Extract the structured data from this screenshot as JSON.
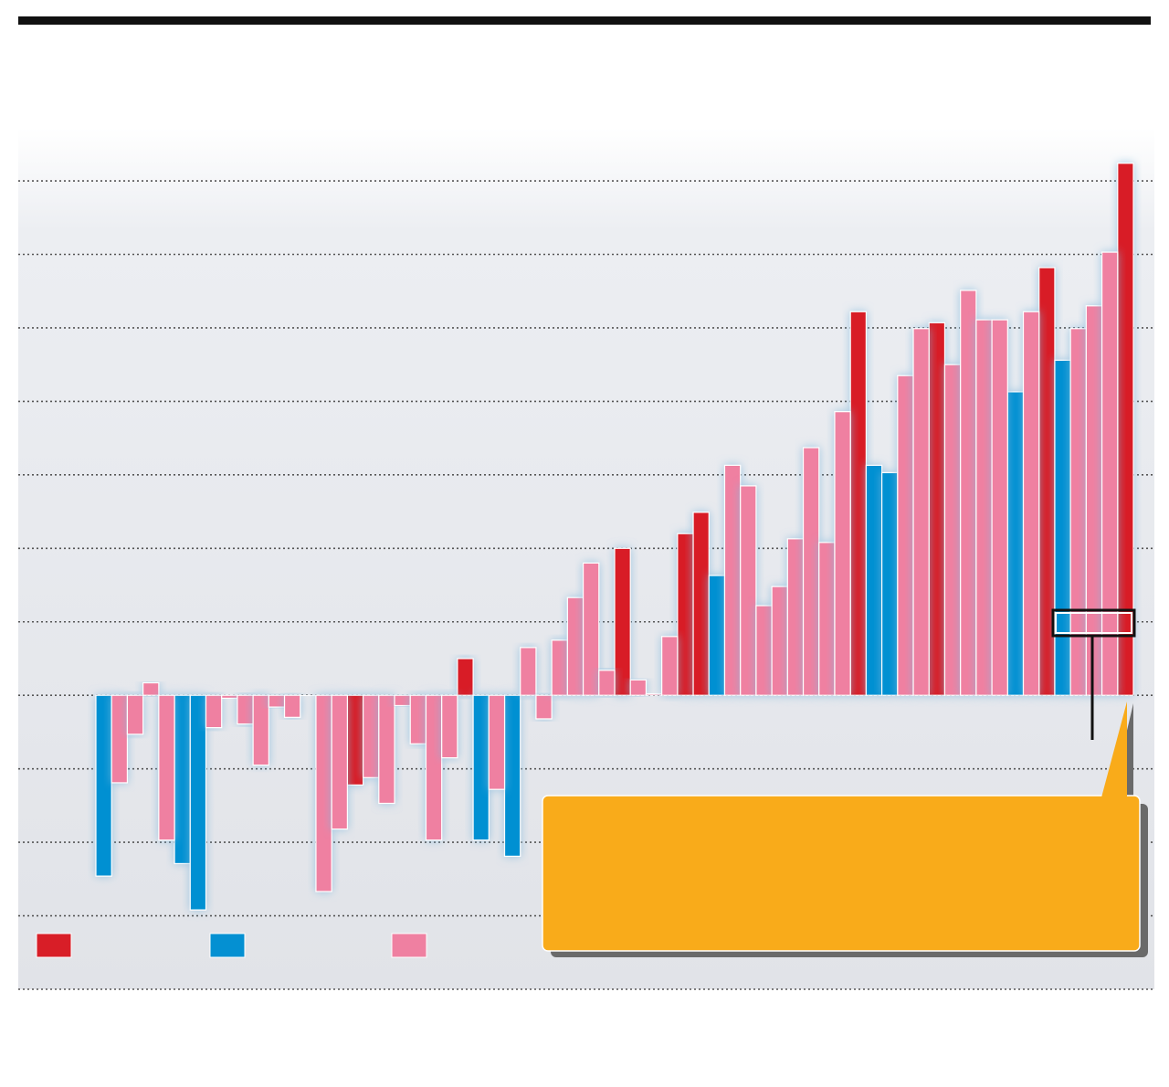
{
  "chart_data": {
    "type": "bar",
    "categories": [
      null,
      null,
      null,
      null,
      null,
      null,
      null,
      null,
      null,
      null,
      null,
      null,
      null,
      null,
      null,
      null,
      null,
      null,
      null,
      null,
      null,
      null,
      null,
      null,
      null,
      null,
      null,
      null,
      null,
      null,
      null,
      null,
      null,
      null,
      null,
      null,
      null,
      null,
      null,
      null,
      null,
      null,
      null,
      null,
      null,
      null,
      null,
      null,
      null,
      null,
      null,
      null,
      null,
      null,
      null,
      null,
      null,
      null,
      null,
      null,
      null,
      null,
      null,
      null,
      null,
      null
    ],
    "series": [
      {
        "color": "#d81e27",
        "values": [
          null,
          null,
          null,
          null,
          null,
          null,
          null,
          null,
          null,
          null,
          null,
          null,
          null,
          null,
          null,
          null,
          -1.22,
          null,
          null,
          null,
          null,
          null,
          null,
          0.5,
          null,
          null,
          null,
          null,
          null,
          null,
          null,
          null,
          null,
          2.0,
          null,
          null,
          null,
          2.2,
          2.49,
          null,
          null,
          null,
          null,
          null,
          null,
          null,
          null,
          null,
          5.22,
          null,
          null,
          null,
          null,
          5.07,
          null,
          null,
          null,
          null,
          null,
          null,
          5.82,
          null,
          null,
          null,
          null,
          7.24
        ]
      },
      {
        "color": "#0490d2",
        "values": [
          -2.46,
          null,
          null,
          null,
          null,
          -2.29,
          -2.92,
          null,
          null,
          null,
          null,
          null,
          null,
          null,
          null,
          null,
          null,
          null,
          null,
          null,
          null,
          null,
          null,
          null,
          -1.97,
          null,
          -2.19,
          null,
          null,
          null,
          null,
          null,
          null,
          null,
          null,
          null,
          null,
          null,
          null,
          1.63,
          null,
          null,
          null,
          null,
          null,
          null,
          null,
          null,
          null,
          3.13,
          3.03,
          null,
          null,
          null,
          null,
          null,
          null,
          null,
          4.13,
          null,
          null,
          4.56,
          null,
          null,
          null,
          null
        ]
      },
      {
        "color": "#ef80a1",
        "values": [
          null,
          -1.19,
          -0.53,
          0.17,
          -1.97,
          null,
          null,
          -0.44,
          -0.04,
          -0.39,
          -0.95,
          -0.16,
          -0.3,
          0,
          -2.67,
          -1.82,
          null,
          -1.12,
          -1.47,
          -0.14,
          -0.66,
          -1.97,
          -0.85,
          null,
          null,
          -1.28,
          null,
          0.65,
          -0.32,
          0.75,
          1.33,
          1.8,
          0.34,
          null,
          0.21,
          0.02,
          0.8,
          null,
          null,
          null,
          3.13,
          2.85,
          1.22,
          1.48,
          2.13,
          3.37,
          2.08,
          3.86,
          null,
          null,
          null,
          4.35,
          4.99,
          null,
          4.5,
          5.51,
          5.11,
          5.11,
          null,
          5.22,
          null,
          null,
          4.99,
          5.3,
          6.03,
          null
        ]
      }
    ],
    "ylim": [
      -4,
      7.6
    ],
    "yticks": [
      -4,
      -3,
      -2,
      -1,
      0,
      1,
      2,
      3,
      4,
      5,
      6,
      7
    ],
    "grid": true
  }
}
